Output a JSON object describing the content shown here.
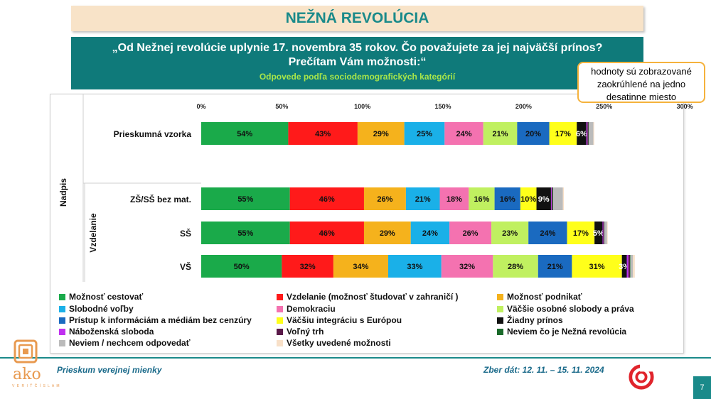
{
  "header": {
    "title": "NEŽNÁ REVOLÚCIA",
    "question": "„Od Nežnej revolúcie uplynie 17. novembra 35 rokov. Čo považujete za jej najväčší prínos? Prečítam Vám možnosti:“",
    "subtitle": "Odpovede podľa sociodemografických kategórií",
    "note": "hodnoty sú zobrazované zaokrúhlené na jedno desatinne miesto"
  },
  "footer": {
    "left": "Prieskum verejnej mienky",
    "right": "Zber dát: 12. 11. – 15. 11. 2024",
    "page": "7",
    "logo_text": "ako",
    "logo_sub": "V E R I Ť   Č Í S L A M"
  },
  "chart_data": {
    "type": "bar",
    "orientation": "horizontal",
    "stacked": true,
    "xlim": [
      0,
      300
    ],
    "x_ticks": [
      "0%",
      "50%",
      "100%",
      "150%",
      "200%",
      "250%",
      "300%"
    ],
    "axis_group_label": "Nadpis",
    "row_group_label": "Vzdelanie",
    "categories": [
      "Prieskumná vzorka",
      "ZŠ/SŠ bez mat.",
      "SŠ",
      "VŠ"
    ],
    "legend_position": "bottom",
    "series": [
      {
        "name": "Možnosť cestovať",
        "color": "#1aaa4a",
        "values": [
          54,
          55,
          55,
          50
        ],
        "labels": [
          "54%",
          "55%",
          "55%",
          "50%"
        ]
      },
      {
        "name": "Vzdelanie (možnosť študovať v zahraničí )",
        "color": "#ff1a1a",
        "values": [
          43,
          46,
          46,
          32
        ],
        "labels": [
          "43%",
          "46%",
          "46%",
          "32%"
        ]
      },
      {
        "name": "Možnosť podnikať",
        "color": "#f5b21c",
        "values": [
          29,
          26,
          29,
          34
        ],
        "labels": [
          "29%",
          "26%",
          "29%",
          "34%"
        ]
      },
      {
        "name": "Slobodné voľby",
        "color": "#1ab0e8",
        "values": [
          25,
          21,
          24,
          33
        ],
        "labels": [
          "25%",
          "21%",
          "24%",
          "33%"
        ]
      },
      {
        "name": "Demokraciu",
        "color": "#f472b0",
        "values": [
          24,
          18,
          26,
          32
        ],
        "labels": [
          "24%",
          "18%",
          "26%",
          "32%"
        ]
      },
      {
        "name": "Väčšie osobné slobody a práva",
        "color": "#c0f060",
        "values": [
          21,
          16,
          23,
          28
        ],
        "labels": [
          "21%",
          "16%",
          "23%",
          "28%"
        ]
      },
      {
        "name": "Prístup k informáciám a médiám bez cenzúry",
        "color": "#1a6ac0",
        "values": [
          20,
          16,
          24,
          21
        ],
        "labels": [
          "20%",
          "16%",
          "24%",
          "21%"
        ]
      },
      {
        "name": "Väčšiu integráciu s Európou",
        "color": "#ffff1a",
        "values": [
          17,
          10,
          17,
          31
        ],
        "labels": [
          "17%",
          "10%",
          "17%",
          "31%"
        ]
      },
      {
        "name": "Žiadny prínos",
        "color": "#111111",
        "values": [
          6,
          9,
          5,
          3
        ],
        "labels": [
          "6%",
          "9%",
          "5%",
          "3%"
        ]
      },
      {
        "name": "Náboženská sloboda",
        "color": "#c030f0",
        "values": [
          0.6,
          0.4,
          0.4,
          1.0
        ],
        "labels": [
          "",
          "",
          "",
          ""
        ]
      },
      {
        "name": "Voľný trh",
        "color": "#5a1a4a",
        "values": [
          0.6,
          0.6,
          0.6,
          1.0
        ],
        "labels": [
          "",
          "",
          "",
          ""
        ]
      },
      {
        "name": "Neviem čo je Nežná revolúcia",
        "color": "#1a6a2a",
        "values": [
          0.3,
          0.4,
          0.2,
          0.2
        ],
        "labels": [
          "",
          "",
          "",
          ""
        ]
      },
      {
        "name": "Neviem / nechcem odpovedať",
        "color": "#bbbbbb",
        "values": [
          2.8,
          6,
          1.6,
          1.6
        ],
        "labels": [
          "",
          "",
          "",
          ""
        ]
      },
      {
        "name": "Všetky uvedené možnosti",
        "color": "#f8e0c8",
        "values": [
          0.5,
          0.6,
          0.4,
          1.2
        ],
        "labels": [
          "",
          "",
          "",
          ""
        ]
      }
    ]
  }
}
